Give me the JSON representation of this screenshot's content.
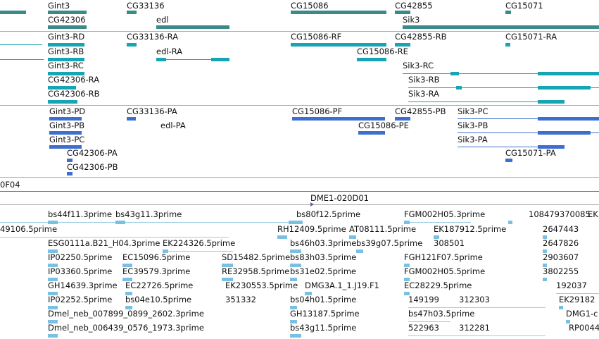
{
  "colors": {
    "gene": "#3a8a8a",
    "transcript_teal": "#17a5b6",
    "transcript_blue": "#3d6fd0",
    "est": "#7bc0e3",
    "est_line": "#9bcbe6",
    "separator": "#a9a9a9",
    "scaffold": "#7a56a2"
  },
  "genes": [
    {
      "label": "Gint3"
    },
    {
      "label": "CG33136"
    },
    {
      "label": "CG15086"
    },
    {
      "label": "CG42855"
    },
    {
      "label": "CG15071"
    },
    {
      "label": "CG42306"
    },
    {
      "label": "edl"
    },
    {
      "label": "Sik3"
    }
  ],
  "teal_transcripts": [
    {
      "label": "Gint3-RD"
    },
    {
      "label": "CG33136-RA"
    },
    {
      "label": "CG15086-RF"
    },
    {
      "label": "CG42855-RB"
    },
    {
      "label": "CG15071-RA"
    },
    {
      "label": "Gint3-RB"
    },
    {
      "label": "edl-RA"
    },
    {
      "label": "CG15086-RE"
    },
    {
      "label": "Gint3-RC"
    },
    {
      "label": "Sik3-RC"
    },
    {
      "label": "CG42306-RA"
    },
    {
      "label": "Sik3-RB"
    },
    {
      "label": "CG42306-RB"
    },
    {
      "label": "Sik3-RA"
    }
  ],
  "blue_transcripts": [
    {
      "label": "Gint3-PD"
    },
    {
      "label": "CG33136-PA"
    },
    {
      "label": "CG15086-PF"
    },
    {
      "label": "CG42855-PB"
    },
    {
      "label": "Sik3-PC"
    },
    {
      "label": "Gint3-PB"
    },
    {
      "label": "edl-PA"
    },
    {
      "label": "CG15086-PE"
    },
    {
      "label": "Sik3-PB"
    },
    {
      "label": "Gint3-PC"
    },
    {
      "label": "Sik3-PA"
    },
    {
      "label": "CG42306-PA"
    },
    {
      "label": "CG15071-PA"
    },
    {
      "label": "CG42306-PB"
    }
  ],
  "scaffold": {
    "left_label": "0F04",
    "center_label": "DME1-020D01"
  },
  "ests": [
    {
      "label": "bs44f11.3prime"
    },
    {
      "label": "bs43g11.3prime"
    },
    {
      "label": "bs80f12.5prime"
    },
    {
      "label": "FGM002H05.3prime"
    },
    {
      "label": "108479370085"
    },
    {
      "label": "EK"
    },
    {
      "label": "49106.5prime"
    },
    {
      "label": "RH12409.5prime"
    },
    {
      "label": "AT08111.5prime"
    },
    {
      "label": "EK187912.5prime"
    },
    {
      "label": "2647443"
    },
    {
      "label": "ESG0111a.B21_H04.3prime"
    },
    {
      "label": "EK224326.5prime"
    },
    {
      "label": "bs46h03.3prime"
    },
    {
      "label": "bs39g07.5prime"
    },
    {
      "label": "308501"
    },
    {
      "label": "2647826"
    },
    {
      "label": "IP02250.5prime"
    },
    {
      "label": "EC15096.5prime"
    },
    {
      "label": "SD15482.5prime"
    },
    {
      "label": "bs83h03.5prime"
    },
    {
      "label": "FGH121F07.5prime"
    },
    {
      "label": "2903607"
    },
    {
      "label": "IP03360.5prime"
    },
    {
      "label": "EC39579.3prime"
    },
    {
      "label": "RE32958.5prime"
    },
    {
      "label": "bs31e02.5prime"
    },
    {
      "label": "FGM002H05.5prime"
    },
    {
      "label": "3802255"
    },
    {
      "label": "GH14639.3prime"
    },
    {
      "label": "EC22726.5prime"
    },
    {
      "label": "EK230553.5prime"
    },
    {
      "label": "DMG3A.1_1.J19.F1"
    },
    {
      "label": "EC28229.5prime"
    },
    {
      "label": "192037"
    },
    {
      "label": "IP02252.5prime"
    },
    {
      "label": "bs04e10.5prime"
    },
    {
      "label": "351332"
    },
    {
      "label": "bs04h01.5prime"
    },
    {
      "label": "149199"
    },
    {
      "label": "312303"
    },
    {
      "label": "EK29182"
    },
    {
      "label": "Dmel_neb_007899_0899_2602.3prime"
    },
    {
      "label": "GH13187.5prime"
    },
    {
      "label": "bs47h03.5prime"
    },
    {
      "label": "DMG1-c"
    },
    {
      "label": "Dmel_neb_006439_0576_1973.3prime"
    },
    {
      "label": "bs43g11.5prime"
    },
    {
      "label": "522963"
    },
    {
      "label": "312281"
    },
    {
      "label": "RP0044"
    }
  ]
}
